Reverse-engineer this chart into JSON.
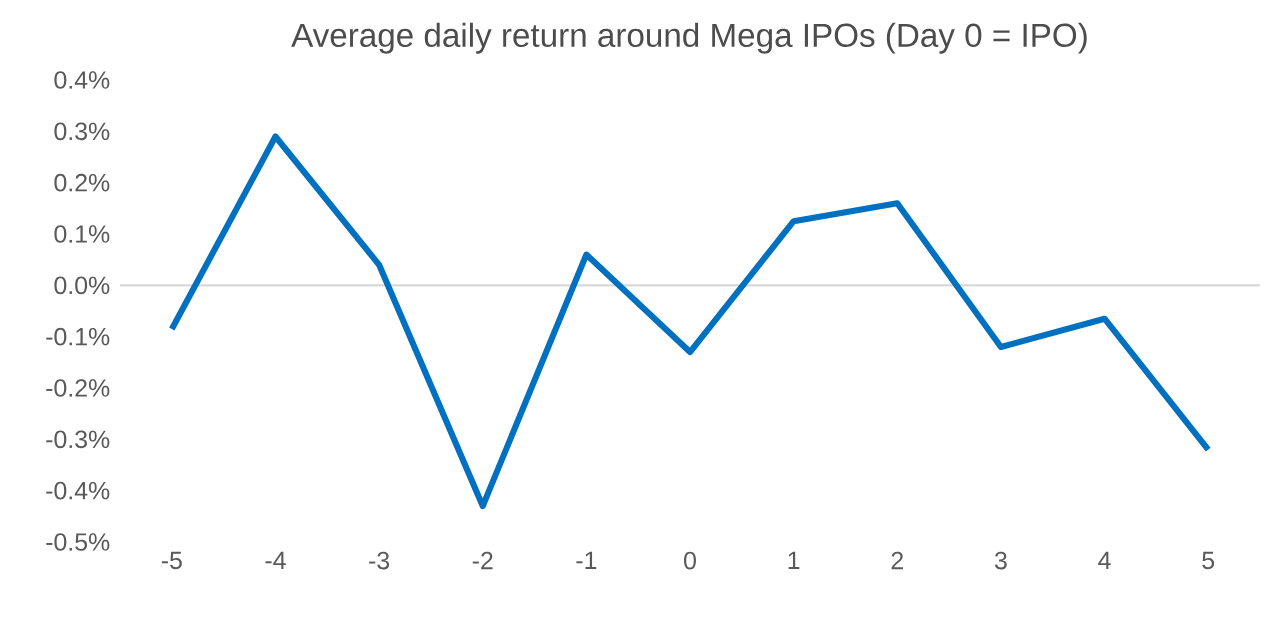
{
  "chart_data": {
    "type": "line",
    "title": "Average daily return around Mega IPOs (Day 0 =  IPO)",
    "categories": [
      "-5",
      "-4",
      "-3",
      "-2",
      "-1",
      "0",
      "1",
      "2",
      "3",
      "4",
      "5"
    ],
    "series": [
      {
        "color": "#0070c0",
        "values": [
          -0.085,
          0.29,
          0.04,
          -0.43,
          0.06,
          -0.13,
          0.125,
          0.16,
          -0.12,
          -0.065,
          -0.32
        ]
      }
    ],
    "ylim": [
      -0.5,
      0.4
    ],
    "yticks": [
      {
        "value": -0.5,
        "label": "-0.5%"
      },
      {
        "value": -0.4,
        "label": "-0.4%"
      },
      {
        "value": -0.3,
        "label": "-0.3%"
      },
      {
        "value": -0.2,
        "label": "-0.2%"
      },
      {
        "value": -0.1,
        "label": "-0.1%"
      },
      {
        "value": 0.0,
        "label": "0.0%"
      },
      {
        "value": 0.1,
        "label": "0.1%"
      },
      {
        "value": 0.2,
        "label": "0.2%"
      },
      {
        "value": 0.3,
        "label": "0.3%"
      },
      {
        "value": 0.4,
        "label": "0.4%"
      }
    ],
    "ref_lines": [
      {
        "axis": "y",
        "value": 0,
        "color": "#d9d9d9"
      }
    ],
    "grid": false,
    "marker": "none",
    "line_style": "solid"
  }
}
